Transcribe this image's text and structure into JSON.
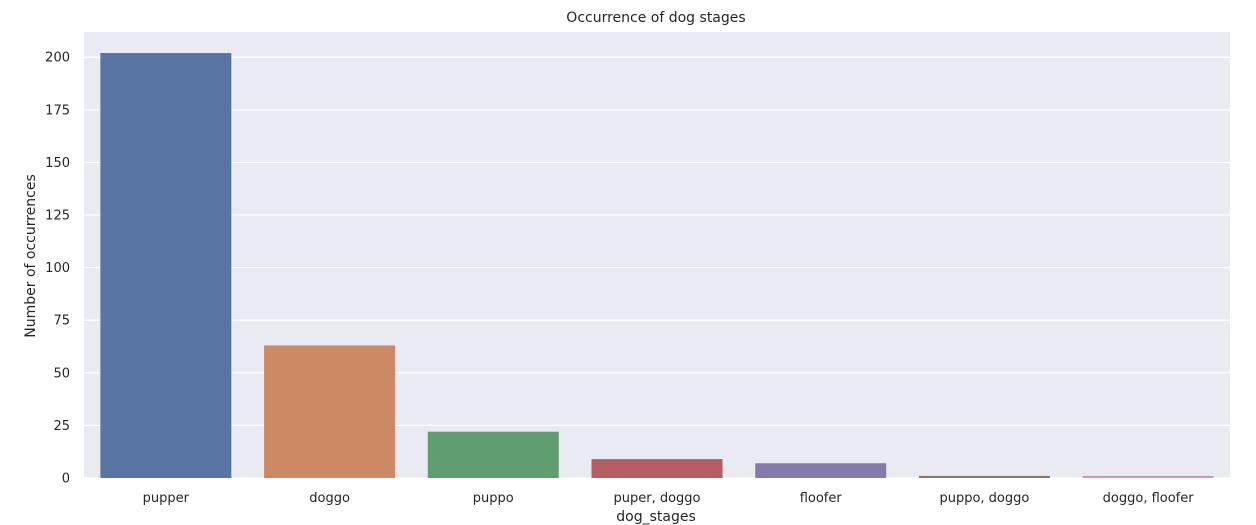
{
  "chart_data": {
    "type": "bar",
    "title": "Occurrence of dog stages",
    "xlabel": "dog_stages",
    "ylabel": "Number of occurrences",
    "categories": [
      "pupper",
      "doggo",
      "puppo",
      "puper, doggo",
      "floofer",
      "puppo, doggo",
      "doggo, floofer"
    ],
    "values": [
      202,
      63,
      22,
      9,
      7,
      1,
      1
    ],
    "colors": [
      "#5875a4",
      "#cc8963",
      "#5f9e6e",
      "#b55d60",
      "#857aab",
      "#8d7866",
      "#d095bf"
    ],
    "ylim": [
      0,
      212
    ],
    "yticks": [
      0,
      25,
      50,
      75,
      100,
      125,
      150,
      175,
      200
    ],
    "grid": true,
    "background": "#eaeaf2"
  }
}
